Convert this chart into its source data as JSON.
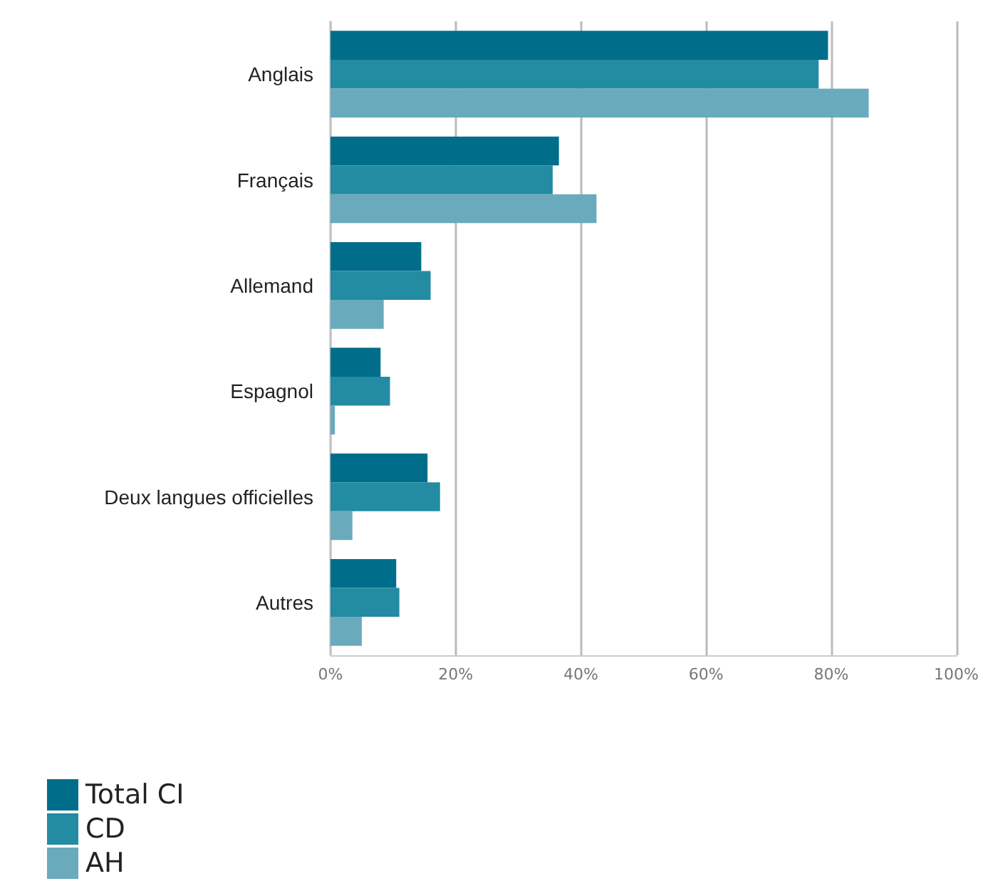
{
  "chart_data": {
    "type": "bar",
    "orientation": "horizontal",
    "categories": [
      "Anglais",
      "Français",
      "Allemand",
      "Espagnol",
      "Deux langues officielles",
      "Autres"
    ],
    "series": [
      {
        "name": "Total CI",
        "color": "#006e8a",
        "values": [
          79.5,
          36.5,
          14.5,
          8,
          15.5,
          10.5
        ]
      },
      {
        "name": "CD",
        "color": "#238ba2",
        "values": [
          78,
          35.5,
          16,
          9.5,
          17.5,
          11
        ]
      },
      {
        "name": "AH",
        "color": "#6aaabd",
        "values": [
          86,
          42.5,
          8.5,
          0.7,
          3.5,
          5
        ]
      }
    ],
    "xlim": [
      0,
      100
    ],
    "xticks": [
      {
        "value": 0,
        "label": "0%"
      },
      {
        "value": 20,
        "label": "20%"
      },
      {
        "value": 40,
        "label": "40%"
      },
      {
        "value": 60,
        "label": "60%"
      },
      {
        "value": 80,
        "label": "80%"
      },
      {
        "value": 100,
        "label": "100%"
      }
    ],
    "grid": "x",
    "legend": "bottom left"
  }
}
